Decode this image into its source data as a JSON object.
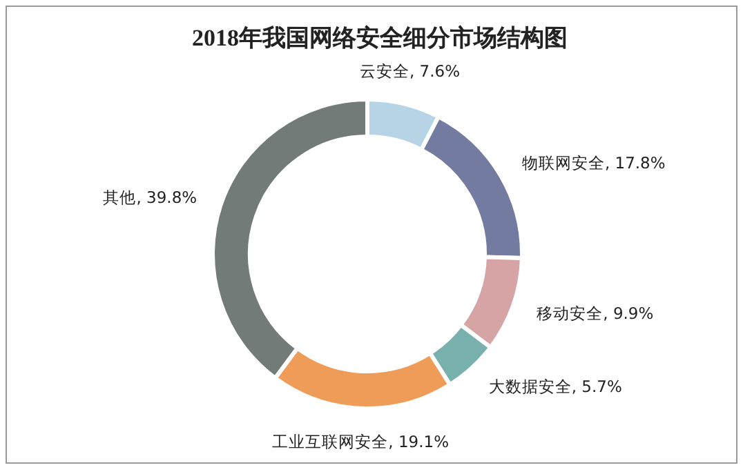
{
  "chart_data": {
    "type": "donut",
    "title": "2018年我国网络安全细分市场结构图",
    "categories": [
      "云安全",
      "物联网安全",
      "移动安全",
      "大数据安全",
      "工业互联网安全",
      "其他"
    ],
    "values": [
      7.6,
      17.8,
      9.9,
      5.7,
      19.1,
      39.8
    ],
    "value_labels": [
      "7.6%",
      "17.8%",
      "9.9%",
      "5.7%",
      "19.1%",
      "39.8%"
    ],
    "colors": [
      "#b7d3e6",
      "#737ba1",
      "#d6a4a4",
      "#78b0ae",
      "#ee9c57",
      "#737b78"
    ]
  }
}
